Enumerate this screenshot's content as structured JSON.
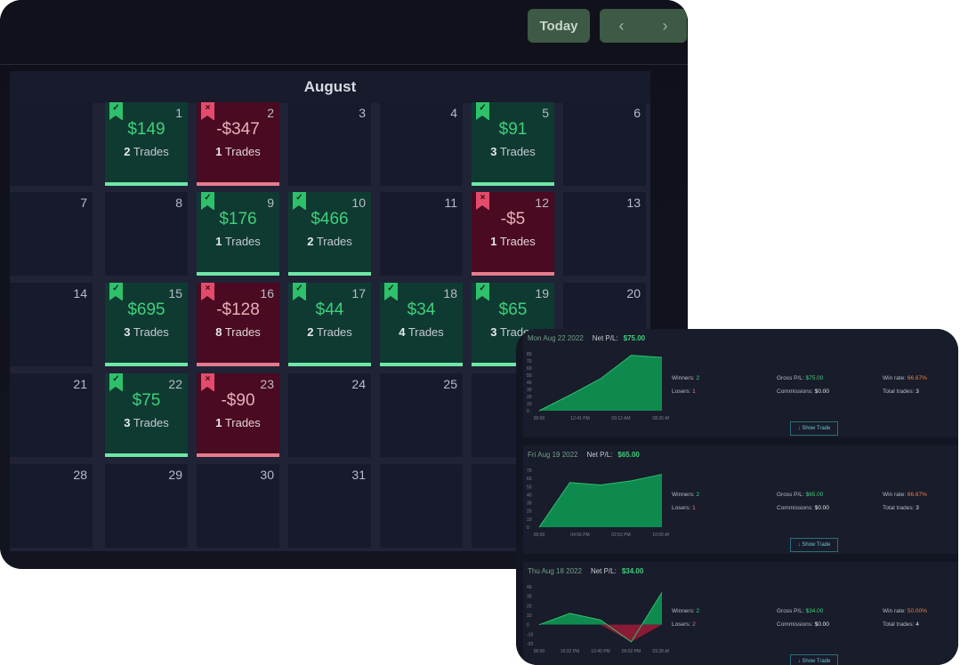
{
  "toolbar": {
    "today_label": "Today",
    "prev_icon": "‹",
    "next_icon": "›"
  },
  "calendar": {
    "month": "August",
    "rows": [
      [
        {
          "day": "",
          "status": "empty"
        },
        {
          "day": "1",
          "status": "win",
          "pnl": "$149",
          "trades": "2",
          "trades_label": "Trades"
        },
        {
          "day": "2",
          "status": "loss",
          "pnl": "-$347",
          "trades": "1",
          "trades_label": "Trades"
        },
        {
          "day": "3",
          "status": "empty"
        },
        {
          "day": "4",
          "status": "empty"
        },
        {
          "day": "5",
          "status": "win",
          "pnl": "$91",
          "trades": "3",
          "trades_label": "Trades"
        },
        {
          "day": "6",
          "status": "empty"
        }
      ],
      [
        {
          "day": "7",
          "status": "empty"
        },
        {
          "day": "8",
          "status": "empty"
        },
        {
          "day": "9",
          "status": "win",
          "pnl": "$176",
          "trades": "1",
          "trades_label": "Trades"
        },
        {
          "day": "10",
          "status": "win",
          "pnl": "$466",
          "trades": "2",
          "trades_label": "Trades"
        },
        {
          "day": "11",
          "status": "empty"
        },
        {
          "day": "12",
          "status": "loss",
          "pnl": "-$5",
          "trades": "1",
          "trades_label": "Trades"
        },
        {
          "day": "13",
          "status": "empty"
        }
      ],
      [
        {
          "day": "14",
          "status": "empty"
        },
        {
          "day": "15",
          "status": "win",
          "pnl": "$695",
          "trades": "3",
          "trades_label": "Trades"
        },
        {
          "day": "16",
          "status": "loss",
          "pnl": "-$128",
          "trades": "8",
          "trades_label": "Trades"
        },
        {
          "day": "17",
          "status": "win",
          "pnl": "$44",
          "trades": "2",
          "trades_label": "Trades"
        },
        {
          "day": "18",
          "status": "win",
          "pnl": "$34",
          "trades": "4",
          "trades_label": "Trades"
        },
        {
          "day": "19",
          "status": "win",
          "pnl": "$65",
          "trades": "3",
          "trades_label": "Trades"
        },
        {
          "day": "20",
          "status": "empty"
        }
      ],
      [
        {
          "day": "21",
          "status": "empty"
        },
        {
          "day": "22",
          "status": "win",
          "pnl": "$75",
          "trades": "3",
          "trades_label": "Trades"
        },
        {
          "day": "23",
          "status": "loss",
          "pnl": "-$90",
          "trades": "1",
          "trades_label": "Trades"
        },
        {
          "day": "24",
          "status": "empty"
        },
        {
          "day": "25",
          "status": "empty"
        },
        {
          "day": "",
          "status": "empty"
        },
        {
          "day": "",
          "status": "empty"
        }
      ],
      [
        {
          "day": "28",
          "status": "empty"
        },
        {
          "day": "29",
          "status": "empty"
        },
        {
          "day": "30",
          "status": "empty"
        },
        {
          "day": "31",
          "status": "empty"
        },
        {
          "day": "",
          "status": "empty"
        },
        {
          "day": "",
          "status": "empty"
        },
        {
          "day": "",
          "status": "empty"
        }
      ]
    ]
  },
  "day_cards": [
    {
      "date": "Mon Aug 22 2022",
      "net_label": "Net P/L:",
      "net_value": "$75.00",
      "winners_label": "Winners:",
      "winners": "2",
      "losers_label": "Losers:",
      "losers": "1",
      "gross_label": "Gross P/L:",
      "gross": "$75.00",
      "commissions_label": "Commissions:",
      "commissions": "$0.00",
      "winrate_label": "Win rate:",
      "winrate": "66.67%",
      "total_label": "Total trades:",
      "total": "3",
      "show_label": "↓ Show Trade",
      "chart": {
        "yticks": [
          "80",
          "70",
          "60",
          "50",
          "40",
          "30",
          "20",
          "10",
          "0"
        ],
        "xticks": [
          "00:00",
          "12:41 PM",
          "09:12 AM",
          "08:26 AM"
        ],
        "ymin": 0,
        "ymax": 80,
        "points": [
          0,
          22,
          45,
          78,
          75
        ],
        "color": "#0f8a4f"
      }
    },
    {
      "date": "Fri Aug 19 2022",
      "net_label": "Net P/L:",
      "net_value": "$65.00",
      "winners_label": "Winners:",
      "winners": "2",
      "losers_label": "Losers:",
      "losers": "1",
      "gross_label": "Gross P/L:",
      "gross": "$65.00",
      "commissions_label": "Commissions:",
      "commissions": "$0.00",
      "winrate_label": "Win rate:",
      "winrate": "66.67%",
      "total_label": "Total trades:",
      "total": "3",
      "show_label": "↓ Show Trade",
      "chart": {
        "yticks": [
          "70",
          "60",
          "50",
          "40",
          "30",
          "20",
          "10",
          "0"
        ],
        "xticks": [
          "00:00",
          "04:56 PM",
          "02:53 PM",
          "10:00 AM"
        ],
        "ymin": 0,
        "ymax": 70,
        "points": [
          0,
          55,
          52,
          57,
          65
        ],
        "color": "#0f8a4f"
      }
    },
    {
      "date": "Thu Aug 18 2022",
      "net_label": "Net P/L:",
      "net_value": "$34.00",
      "winners_label": "Winners:",
      "winners": "2",
      "losers_label": "Losers:",
      "losers": "2",
      "gross_label": "Gross P/L:",
      "gross": "$34.00",
      "commissions_label": "Commissions:",
      "commissions": "$0.00",
      "winrate_label": "Win rate:",
      "winrate": "50.00%",
      "total_label": "Total trades:",
      "total": "4",
      "show_label": "↓ Show Trade",
      "chart": {
        "yticks": [
          "40",
          "30",
          "20",
          "10",
          "0",
          "-10",
          "-20"
        ],
        "xticks": [
          "00:00",
          "10:32 PM",
          "10:40 PM",
          "09:02 PM",
          "09:28 AM"
        ],
        "ymin": -20,
        "ymax": 40,
        "points": [
          0,
          12,
          5,
          -18,
          34
        ],
        "color": "#0f8a4f"
      }
    }
  ]
}
